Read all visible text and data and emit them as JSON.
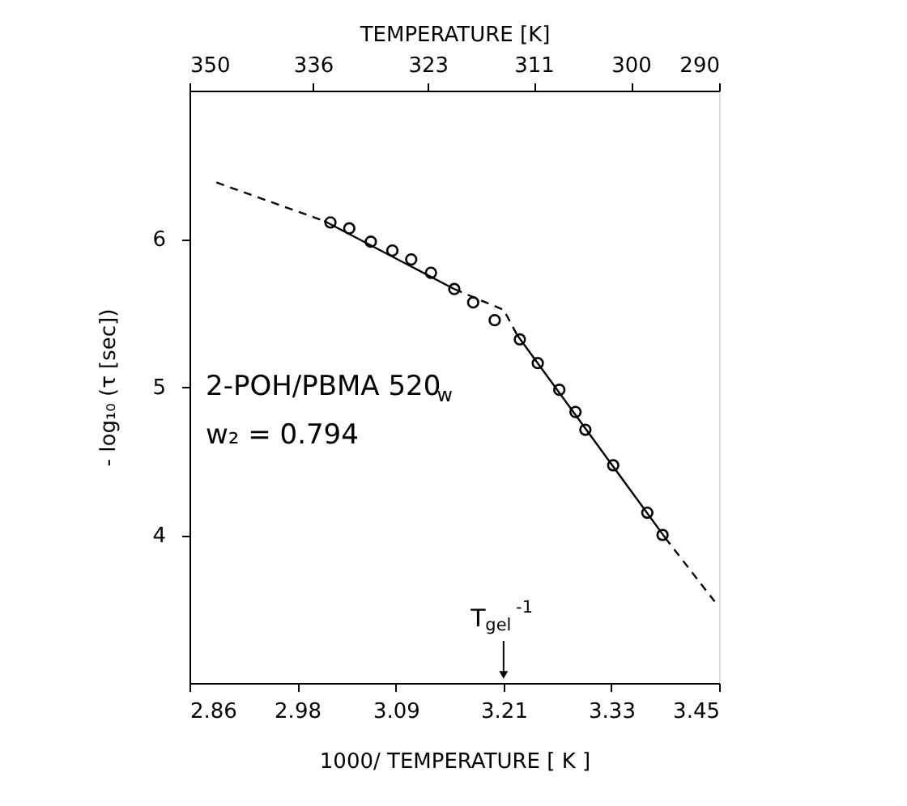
{
  "chart_data": {
    "type": "scatter",
    "xlabel": "1000/ TEMPERATURE [ K ]",
    "ylabel": "- log₁₀ (τ [sec])",
    "x2label": "TEMPERATURE [K]",
    "xlim": [
      2.86,
      3.45
    ],
    "xticks": [
      2.86,
      2.98,
      3.09,
      3.21,
      3.33,
      3.45
    ],
    "x2lim": [
      350,
      290
    ],
    "x2ticks": [
      350,
      336,
      323,
      311,
      300,
      290
    ],
    "ylim": [
      3,
      7
    ],
    "yticks": [
      4,
      5,
      6
    ],
    "grid": false,
    "series": [
      {
        "color": "#000000",
        "marker": "circle",
        "x": [
          3.017,
          3.038,
          3.062,
          3.086,
          3.107,
          3.129,
          3.155,
          3.176,
          3.2,
          3.228,
          3.248,
          3.272,
          3.29,
          3.301,
          3.332,
          3.37,
          3.387
        ],
        "values": [
          6.11,
          6.07,
          5.98,
          5.92,
          5.86,
          5.77,
          5.66,
          5.57,
          5.45,
          5.32,
          5.16,
          4.98,
          4.83,
          4.71,
          4.47,
          4.15,
          4.0
        ]
      },
      {
        "type": "line",
        "color": "#000000",
        "line_style": "dashed",
        "marker": "none",
        "x": [
          2.89,
          3.01
        ],
        "values": [
          6.38,
          6.12
        ]
      },
      {
        "type": "line",
        "color": "#000000",
        "line_style": "solid",
        "marker": "none",
        "x": [
          3.01,
          3.155
        ],
        "values": [
          6.12,
          5.66
        ]
      },
      {
        "type": "line",
        "color": "#000000",
        "line_style": "dashed",
        "marker": "none",
        "x": [
          3.155,
          3.19,
          3.21,
          3.225
        ],
        "values": [
          5.66,
          5.57,
          5.52,
          5.35
        ]
      },
      {
        "type": "line",
        "color": "#000000",
        "line_style": "solid",
        "marker": "none",
        "x": [
          3.225,
          3.39
        ],
        "values": [
          5.35,
          3.98
        ]
      },
      {
        "type": "line",
        "color": "#000000",
        "line_style": "dashed",
        "marker": "none",
        "x": [
          3.39,
          3.445
        ],
        "values": [
          3.98,
          3.55
        ]
      }
    ],
    "annotations": [
      "2-POH/PBMA 520$_{w}$",
      "w₂ = 0.794",
      "T$_{gel}$$^{-1}$"
    ]
  }
}
